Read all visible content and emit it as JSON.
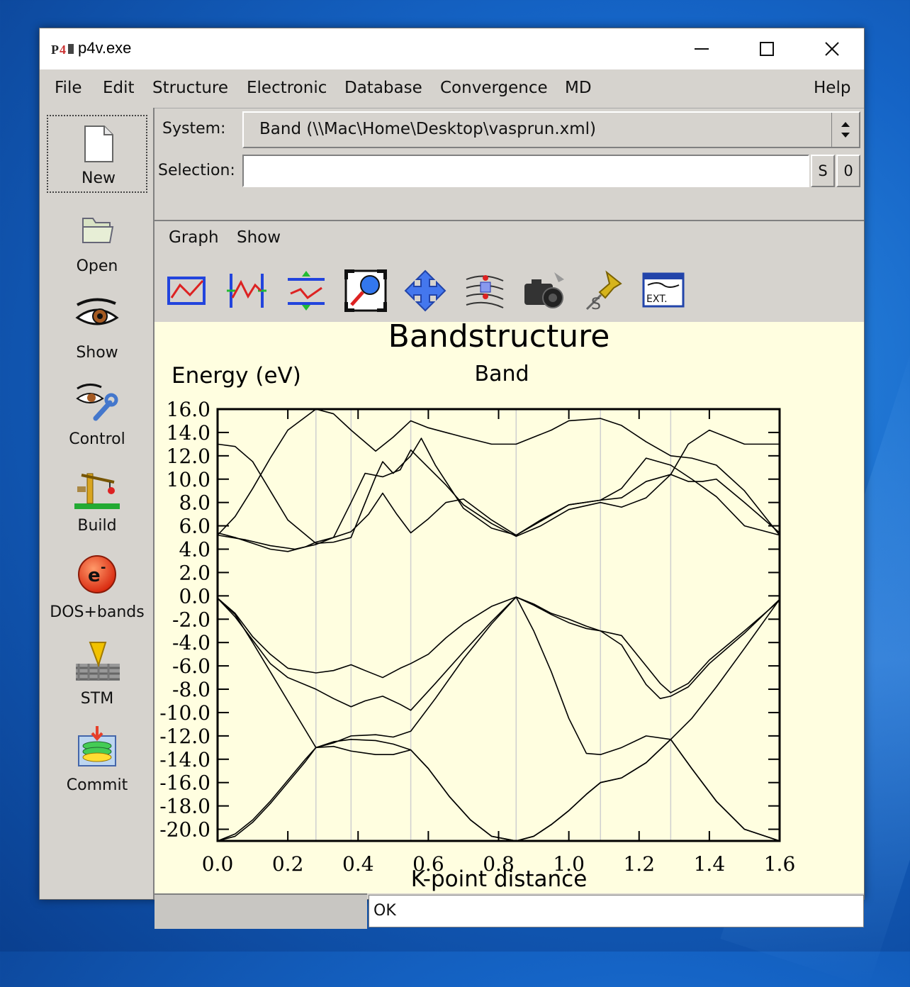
{
  "window": {
    "title": "p4v.exe"
  },
  "menu": [
    "File",
    "Edit",
    "Structure",
    "Electronic",
    "Database",
    "Convergence",
    "MD",
    "Help"
  ],
  "sidebar": {
    "items": [
      {
        "label": "New",
        "icon": "new-document-icon"
      },
      {
        "label": "Open",
        "icon": "open-folder-icon"
      },
      {
        "label": "Show",
        "icon": "eye-icon"
      },
      {
        "label": "Control",
        "icon": "eye-wrench-icon"
      },
      {
        "label": "Build",
        "icon": "crane-icon"
      },
      {
        "label": "DOS+bands",
        "icon": "electron-icon"
      },
      {
        "label": "STM",
        "icon": "stm-tip-icon"
      },
      {
        "label": "Commit",
        "icon": "database-commit-icon"
      }
    ]
  },
  "system": {
    "label": "System:",
    "value": "Band (\\\\Mac\\Home\\Desktop\\vasprun.xml)"
  },
  "selection": {
    "label": "Selection:",
    "value": "",
    "s_label": "S",
    "zero_label": "0"
  },
  "submenu": [
    "Graph",
    "Show"
  ],
  "toolbar_icons": [
    "graph-frame-icon",
    "band-markers-icon",
    "band-shift-icon",
    "zoom-magnifier-icon",
    "pan-arrows-icon",
    "level-selector-icon",
    "camera-icon",
    "pushpin-icon",
    "ext-window-icon"
  ],
  "toolbar_ext_label": "EXT.",
  "chart_data": {
    "type": "line",
    "title": "Bandstructure",
    "subtitle": "Band",
    "xlabel": "K-point distance",
    "ylabel": "Energy (eV)",
    "xlim": [
      0.0,
      1.6
    ],
    "ylim": [
      -21.0,
      16.0
    ],
    "xticks": [
      "0.0",
      "0.2",
      "0.4",
      "0.6",
      "0.8",
      "1.0",
      "1.2",
      "1.4",
      "1.6"
    ],
    "yticks": [
      "16.0",
      "14.0",
      "12.0",
      "10.0",
      "8.0",
      "6.0",
      "4.0",
      "2.0",
      "0.0",
      "-2.0",
      "-4.0",
      "-6.0",
      "-8.0",
      "-10.0",
      "-12.0",
      "-14.0",
      "-16.0",
      "-18.0",
      "-20.0"
    ],
    "vlines": [
      0.28,
      0.38,
      0.55,
      0.85,
      1.09,
      1.29
    ],
    "series": [
      {
        "x": [
          0.0,
          0.05,
          0.1,
          0.15,
          0.2,
          0.28,
          0.33,
          0.38,
          0.45,
          0.5,
          0.55,
          0.6,
          0.7,
          0.78,
          0.85,
          0.95,
          1.0,
          1.09,
          1.15,
          1.22,
          1.29,
          1.35,
          1.42,
          1.5,
          1.6
        ],
        "y": [
          5.2,
          6.8,
          9.2,
          11.8,
          14.2,
          16.0,
          15.6,
          14.2,
          12.4,
          13.6,
          15.0,
          14.4,
          13.6,
          13.0,
          13.0,
          14.2,
          15.0,
          15.2,
          14.6,
          13.2,
          12.0,
          11.8,
          11.2,
          9.0,
          5.2
        ]
      },
      {
        "x": [
          0.0,
          0.05,
          0.1,
          0.15,
          0.2,
          0.28,
          0.33,
          0.38,
          0.45,
          0.47,
          0.5,
          0.55,
          0.58,
          0.62,
          0.7,
          0.78,
          0.85,
          0.92,
          1.0,
          1.09,
          1.15,
          1.22,
          1.29,
          1.34,
          1.38,
          1.42,
          1.5,
          1.6
        ],
        "y": [
          13.0,
          12.8,
          11.5,
          9.0,
          6.5,
          4.5,
          4.6,
          5.0,
          10.2,
          11.5,
          10.5,
          12.0,
          13.5,
          11.2,
          7.5,
          5.8,
          5.2,
          6.5,
          7.8,
          8.2,
          8.4,
          9.8,
          10.4,
          9.8,
          9.8,
          10.0,
          8.0,
          5.4
        ]
      },
      {
        "x": [
          0.0,
          0.05,
          0.1,
          0.15,
          0.2,
          0.25,
          0.28,
          0.33,
          0.38,
          0.42,
          0.47,
          0.52,
          0.55,
          0.6,
          0.65,
          0.7,
          0.78,
          0.85,
          0.92,
          1.0,
          1.09,
          1.15,
          1.22,
          1.29,
          1.34,
          1.4,
          1.5,
          1.6
        ],
        "y": [
          5.4,
          5.0,
          4.5,
          4.0,
          3.8,
          4.2,
          4.6,
          5.0,
          8.0,
          10.5,
          10.2,
          10.8,
          12.5,
          11.0,
          9.5,
          7.8,
          6.2,
          5.1,
          6.0,
          7.4,
          8.0,
          7.6,
          8.4,
          10.4,
          13.0,
          14.2,
          13.0,
          13.0
        ]
      },
      {
        "x": [
          0.0,
          0.08,
          0.15,
          0.22,
          0.28,
          0.33,
          0.38,
          0.43,
          0.47,
          0.51,
          0.55,
          0.6,
          0.65,
          0.7,
          0.78,
          0.85,
          0.92,
          1.0,
          1.09,
          1.15,
          1.22,
          1.29,
          1.35,
          1.42,
          1.5,
          1.6
        ],
        "y": [
          5.2,
          4.8,
          4.3,
          4.0,
          4.4,
          5.0,
          5.5,
          7.0,
          8.8,
          7.0,
          5.4,
          6.6,
          8.0,
          8.3,
          6.5,
          5.2,
          6.4,
          7.8,
          8.2,
          9.2,
          11.8,
          11.2,
          10.0,
          8.5,
          6.0,
          5.2
        ]
      },
      {
        "x": [
          0.0,
          0.05,
          0.1,
          0.15,
          0.2,
          0.28,
          0.33,
          0.38,
          0.42,
          0.47,
          0.52,
          0.55,
          0.6,
          0.65,
          0.7,
          0.78,
          0.85,
          0.9,
          0.95,
          1.0,
          1.05,
          1.09,
          1.15,
          1.22,
          1.26,
          1.29,
          1.34,
          1.4,
          1.5,
          1.6
        ],
        "y": [
          -0.2,
          -1.5,
          -3.5,
          -5.0,
          -6.2,
          -6.6,
          -6.4,
          -5.9,
          -6.4,
          -7.0,
          -6.2,
          -5.8,
          -5.0,
          -3.6,
          -2.4,
          -0.9,
          -0.1,
          -0.7,
          -1.5,
          -2.0,
          -2.6,
          -3.0,
          -3.4,
          -6.0,
          -7.5,
          -8.3,
          -7.5,
          -5.5,
          -3.0,
          -0.4
        ]
      },
      {
        "x": [
          0.0,
          0.05,
          0.1,
          0.15,
          0.2,
          0.28,
          0.33,
          0.38,
          0.42,
          0.47,
          0.52,
          0.55,
          0.62,
          0.7,
          0.78,
          0.85,
          0.9,
          0.95,
          1.0,
          1.05,
          1.09,
          1.15,
          1.22,
          1.26,
          1.29,
          1.34,
          1.4,
          1.5,
          1.6
        ],
        "y": [
          -0.2,
          -1.8,
          -3.8,
          -5.8,
          -7.0,
          -8.0,
          -8.8,
          -9.5,
          -9.0,
          -8.6,
          -9.3,
          -9.8,
          -7.5,
          -4.8,
          -2.2,
          -0.1,
          -0.8,
          -1.6,
          -2.3,
          -2.8,
          -3.0,
          -4.2,
          -7.6,
          -8.8,
          -8.6,
          -7.8,
          -5.8,
          -3.2,
          -0.3
        ]
      },
      {
        "x": [
          0.0,
          0.05,
          0.1,
          0.15,
          0.2,
          0.25,
          0.28,
          0.33,
          0.38,
          0.45,
          0.5,
          0.55,
          0.62,
          0.7,
          0.78,
          0.85,
          0.9,
          0.95,
          1.0,
          1.05,
          1.09,
          1.15,
          1.22,
          1.29,
          1.35,
          1.42,
          1.5,
          1.6
        ],
        "y": [
          -0.2,
          -1.6,
          -4.0,
          -6.5,
          -9.0,
          -11.5,
          -13.0,
          -12.6,
          -12.0,
          -11.9,
          -12.1,
          -11.6,
          -8.8,
          -5.4,
          -2.4,
          -0.1,
          -3.0,
          -6.5,
          -10.5,
          -13.5,
          -13.6,
          -13.0,
          -12.0,
          -12.3,
          -10.5,
          -7.8,
          -4.5,
          -0.3
        ]
      },
      {
        "x": [
          0.0,
          0.05,
          0.1,
          0.15,
          0.2,
          0.25,
          0.28,
          0.33,
          0.38,
          0.45,
          0.5,
          0.55,
          0.6,
          0.66,
          0.72,
          0.78,
          0.85,
          0.9,
          0.95,
          1.0,
          1.05,
          1.09,
          1.15,
          1.22,
          1.29,
          1.35,
          1.42,
          1.5,
          1.6
        ],
        "y": [
          -21.0,
          -20.4,
          -19.2,
          -17.6,
          -15.8,
          -14.0,
          -13.0,
          -12.9,
          -13.3,
          -13.6,
          -13.6,
          -13.2,
          -14.8,
          -17.2,
          -19.2,
          -20.6,
          -21.0,
          -20.6,
          -19.6,
          -18.4,
          -17.0,
          -16.0,
          -15.6,
          -14.3,
          -12.3,
          -14.8,
          -17.6,
          -20.0,
          -21.0
        ]
      },
      {
        "x": [
          0.0,
          0.05,
          0.1,
          0.15,
          0.2,
          0.25,
          0.28,
          0.33,
          0.38,
          0.45,
          0.5,
          0.55,
          0.6,
          0.66,
          0.72,
          0.78,
          0.85,
          0.9,
          0.95,
          1.0,
          1.05,
          1.09,
          1.15,
          1.22,
          1.29,
          1.35,
          1.42,
          1.5,
          1.6
        ],
        "y": [
          -21.0,
          -20.6,
          -19.4,
          -17.8,
          -16.0,
          -14.2,
          -13.0,
          -12.5,
          -12.3,
          -12.4,
          -12.7,
          -13.2,
          -14.8,
          -17.2,
          -19.2,
          -20.6,
          -21.0,
          -20.6,
          -19.6,
          -18.4,
          -17.0,
          -16.0,
          -15.6,
          -14.3,
          -12.3,
          -14.8,
          -17.6,
          -20.0,
          -21.0
        ]
      }
    ]
  },
  "status": {
    "text": "OK"
  }
}
